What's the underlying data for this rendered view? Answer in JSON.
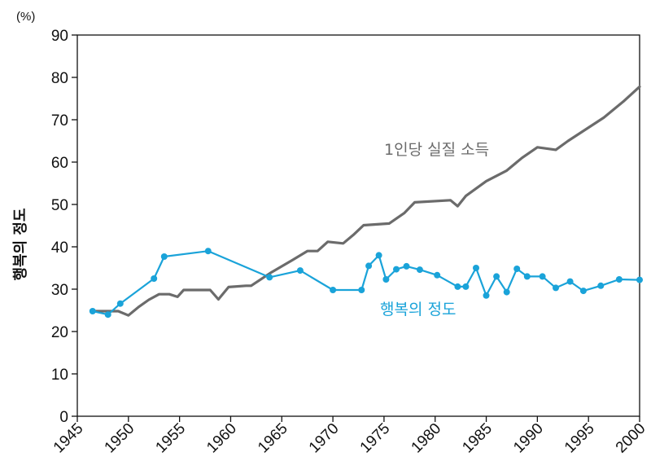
{
  "chart_data": {
    "type": "line",
    "title": "",
    "xlabel": "",
    "ylabel": "행복의 정도",
    "y_unit": "(%)",
    "xlim": [
      1945,
      2000
    ],
    "ylim": [
      0,
      90
    ],
    "x_ticks": [
      "1945",
      "1950",
      "1955",
      "1960",
      "1965",
      "1970",
      "1975",
      "1980",
      "1985",
      "1990",
      "1995",
      "2000"
    ],
    "y_ticks": [
      "0",
      "10",
      "20",
      "30",
      "40",
      "50",
      "60",
      "70",
      "80",
      "90"
    ],
    "grid": false,
    "series": [
      {
        "name": "1인당 실질 소득",
        "color": "#6b6b6b",
        "markers": false,
        "points": [
          [
            1946.5,
            24.8
          ],
          [
            1948,
            24.8
          ],
          [
            1949,
            24.8
          ],
          [
            1950,
            23.8
          ],
          [
            1951,
            25.8
          ],
          [
            1952,
            27.5
          ],
          [
            1953,
            28.8
          ],
          [
            1954,
            28.8
          ],
          [
            1954.8,
            28.2
          ],
          [
            1955.4,
            29.8
          ],
          [
            1957,
            29.8
          ],
          [
            1958,
            29.8
          ],
          [
            1958.8,
            27.6
          ],
          [
            1959.8,
            30.5
          ],
          [
            1961.5,
            30.8
          ],
          [
            1962,
            30.8
          ],
          [
            1964,
            34.0
          ],
          [
            1966,
            36.8
          ],
          [
            1967.5,
            39.0
          ],
          [
            1968.5,
            39.0
          ],
          [
            1969.5,
            41.2
          ],
          [
            1971,
            40.8
          ],
          [
            1972,
            42.8
          ],
          [
            1973,
            45.1
          ],
          [
            1975.5,
            45.5
          ],
          [
            1977,
            48.0
          ],
          [
            1978,
            50.5
          ],
          [
            1981.5,
            51.0
          ],
          [
            1982.2,
            49.6
          ],
          [
            1983,
            52.0
          ],
          [
            1985,
            55.5
          ],
          [
            1987,
            58.0
          ],
          [
            1988.5,
            61.0
          ],
          [
            1990,
            63.5
          ],
          [
            1991.8,
            62.9
          ],
          [
            1993,
            65.0
          ],
          [
            1996.5,
            70.5
          ],
          [
            1998.5,
            74.5
          ],
          [
            2000,
            77.8
          ]
        ]
      },
      {
        "name": "행복의 정도",
        "color": "#1aa3d9",
        "markers": true,
        "points": [
          [
            1946.5,
            24.8
          ],
          [
            1948,
            24.0
          ],
          [
            1949.2,
            26.6
          ],
          [
            1952.5,
            32.5
          ],
          [
            1953.5,
            37.7
          ],
          [
            1957.8,
            39.0
          ],
          [
            1963.8,
            32.8
          ],
          [
            1966.8,
            34.4
          ],
          [
            1970,
            29.8
          ],
          [
            1972.8,
            29.8
          ],
          [
            1973.5,
            35.5
          ],
          [
            1974.5,
            38.0
          ],
          [
            1975.2,
            32.3
          ],
          [
            1976.2,
            34.7
          ],
          [
            1977.2,
            35.4
          ],
          [
            1978.5,
            34.6
          ],
          [
            1980.2,
            33.3
          ],
          [
            1982.2,
            30.6
          ],
          [
            1983,
            30.6
          ],
          [
            1984,
            35.0
          ],
          [
            1985,
            28.5
          ],
          [
            1986,
            33.0
          ],
          [
            1987,
            29.3
          ],
          [
            1988,
            34.8
          ],
          [
            1989,
            33.0
          ],
          [
            1990.5,
            33.0
          ],
          [
            1991.8,
            30.3
          ],
          [
            1993.2,
            31.8
          ],
          [
            1994.5,
            29.6
          ],
          [
            1996.2,
            30.8
          ],
          [
            1998,
            32.3
          ],
          [
            2000,
            32.2
          ]
        ]
      }
    ]
  }
}
